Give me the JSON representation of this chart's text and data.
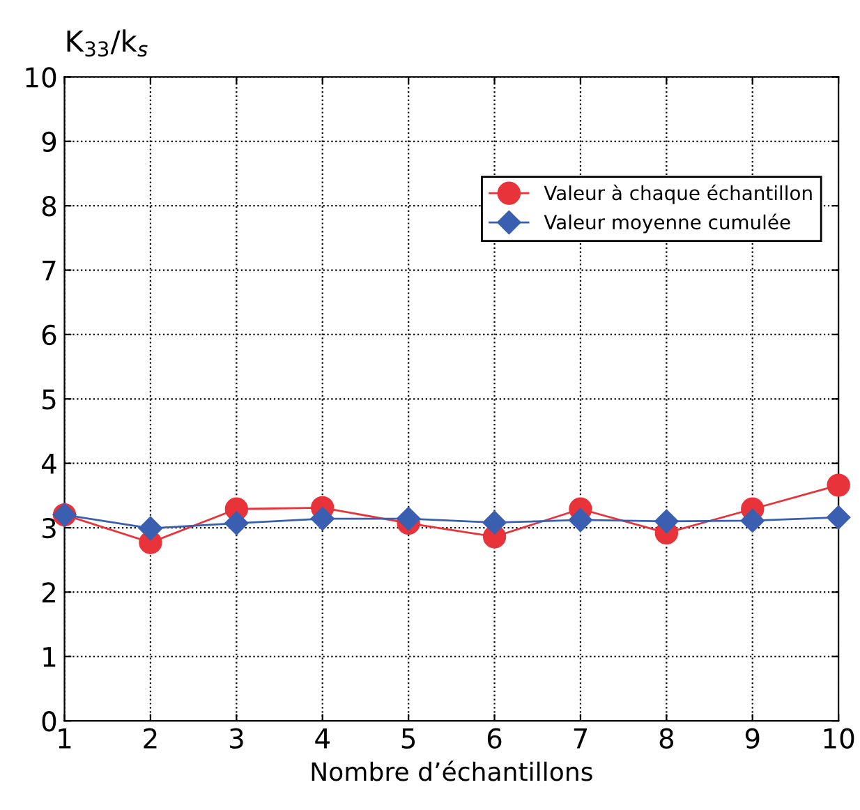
{
  "chart_data": {
    "type": "line",
    "ylabel": "K$_{33}$/k$_{s}$",
    "xlabel": "Nombre d’échantillons",
    "x": [
      1,
      2,
      3,
      4,
      5,
      6,
      7,
      8,
      9,
      10
    ],
    "series": [
      {
        "name": "Valeur à chaque échantillon",
        "color": "#e8333a",
        "marker": "circle",
        "values": [
          3.2,
          2.77,
          3.29,
          3.31,
          3.07,
          2.86,
          3.29,
          2.92,
          3.29,
          3.66
        ]
      },
      {
        "name": "Valeur moyenne cumulée",
        "color": "#3a5fb0",
        "marker": "diamond",
        "values": [
          3.2,
          2.99,
          3.07,
          3.14,
          3.14,
          3.08,
          3.12,
          3.1,
          3.11,
          3.16
        ]
      }
    ],
    "xlim": [
      1,
      10
    ],
    "xticks": [
      1,
      2,
      3,
      4,
      5,
      6,
      7,
      8,
      9,
      10
    ],
    "ylim": [
      0,
      10
    ],
    "yticks": [
      0,
      1,
      2,
      3,
      4,
      5,
      6,
      7,
      8,
      9,
      10
    ],
    "grid": true,
    "legend": "top right",
    "line_style": "solid"
  }
}
